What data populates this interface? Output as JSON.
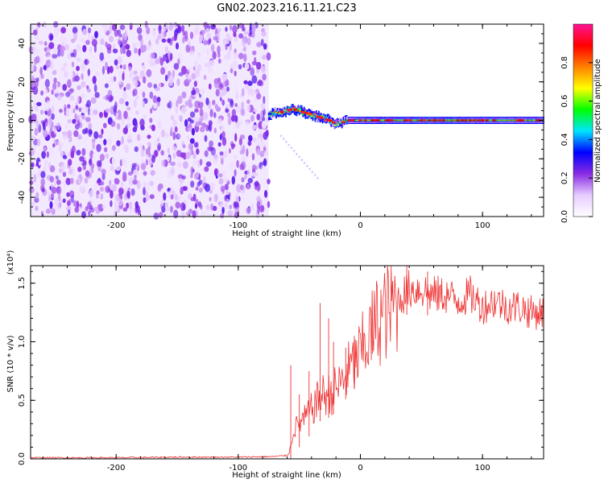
{
  "figure_title": "GN02.2023.216.11.21.C23",
  "chart_data": [
    {
      "type": "heatmap",
      "title": "GN02.2023.216.11.21.C23",
      "xlabel": "Height of straight line (km)",
      "ylabel": "Frequency (Hz)",
      "xlim": [
        -270,
        150
      ],
      "ylim": [
        -50,
        50
      ],
      "x_ticks": [
        -200,
        -100,
        0,
        100
      ],
      "y_ticks": [
        -40,
        -20,
        0,
        20,
        40
      ],
      "noise_region_x": [
        -270,
        -75
      ],
      "signal_track": {
        "x": [
          -75,
          -70,
          -65,
          -60,
          -55,
          -50,
          -45,
          -40,
          -35,
          -30,
          -25,
          -20,
          -15,
          -10,
          0,
          20,
          40,
          60,
          80,
          100,
          120,
          150
        ],
        "freq_hz": [
          3,
          4,
          4,
          5,
          6,
          5,
          4,
          3,
          2,
          1,
          0,
          -2,
          -1,
          0,
          0,
          0,
          0,
          0,
          0,
          0,
          0,
          0
        ],
        "amplitude": [
          0.5,
          0.7,
          0.85,
          0.9,
          0.95,
          0.9,
          0.85,
          0.8,
          0.75,
          0.8,
          0.7,
          0.65,
          0.55,
          0.6,
          0.7,
          0.8,
          0.75,
          0.85,
          0.8,
          0.75,
          0.7,
          0.7
        ]
      },
      "faint_branch": {
        "x": [
          -65,
          -35
        ],
        "freq_hz": [
          -8,
          -30
        ]
      },
      "colorbar": {
        "label": "Normalized spectral amplitude",
        "range": [
          0,
          1
        ],
        "ticks": [
          0.0,
          0.2,
          0.4,
          0.6,
          0.8
        ],
        "tick_labels": [
          "0.0",
          "0.2",
          "0.4",
          "0.6",
          "0.8"
        ],
        "colors": [
          "#ffffff",
          "#e6ccff",
          "#8a2be2",
          "#0000ff",
          "#00e5ff",
          "#00ff00",
          "#ffff00",
          "#ff8000",
          "#ff0000",
          "#ff1493"
        ]
      }
    },
    {
      "type": "line",
      "xlabel": "Height of straight line (km)",
      "ylabel": "SNR (10 * v/v)",
      "y_scale_label": "(x10⁴)",
      "xlim": [
        -270,
        150
      ],
      "ylim": [
        0,
        1.65
      ],
      "x_ticks": [
        -200,
        -100,
        0,
        100
      ],
      "y_ticks": [
        0.0,
        0.5,
        1.0,
        1.5
      ],
      "y_tick_labels": [
        "0.0",
        "0.5",
        "1.0",
        "1.5"
      ],
      "color": "#ee3333",
      "series": [
        {
          "x": [
            -270,
            -250,
            -200,
            -150,
            -100,
            -70,
            -60,
            -57,
            -55,
            -50,
            -45,
            -40,
            -35,
            -30,
            -25,
            -20,
            -15,
            -10,
            -5,
            0,
            5,
            10,
            15,
            20,
            25,
            30,
            35,
            40,
            45,
            50,
            60,
            70,
            80,
            90,
            100,
            110,
            120,
            130,
            140,
            150
          ],
          "values": [
            0.01,
            0.01,
            0.01,
            0.015,
            0.015,
            0.02,
            0.03,
            0.1,
            0.25,
            0.3,
            0.35,
            0.42,
            0.5,
            0.55,
            0.55,
            0.6,
            0.65,
            0.75,
            0.8,
            0.9,
            1.0,
            1.1,
            1.2,
            1.25,
            1.3,
            1.35,
            1.4,
            1.45,
            1.45,
            1.45,
            1.4,
            1.4,
            1.35,
            1.4,
            1.3,
            1.35,
            1.3,
            1.3,
            1.25,
            1.25
          ],
          "spike_x": [
            -57,
            -50,
            -42,
            -33,
            -26,
            -22,
            -12,
            -5,
            10,
            38,
            55
          ],
          "spike_values": [
            0.8,
            0.55,
            0.75,
            1.33,
            1.2,
            1.0,
            0.95,
            1.05,
            1.2,
            1.65,
            1.6
          ]
        }
      ]
    }
  ]
}
